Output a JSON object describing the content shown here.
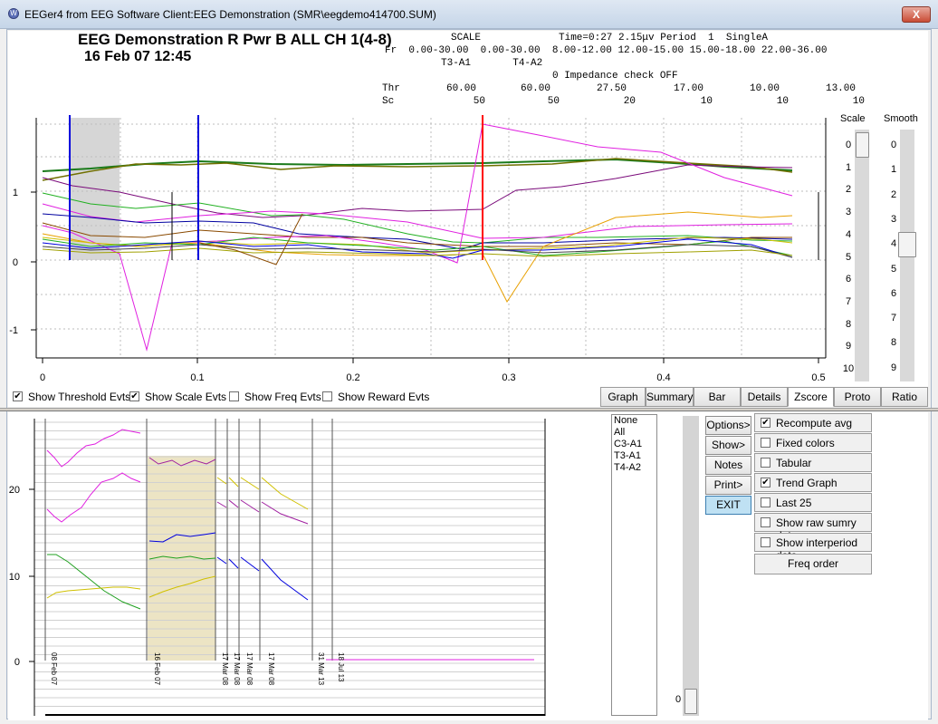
{
  "window": {
    "title": "EEGer4 from EEG Software   Client:EEG Demonstration  (SMR\\eegdemo414700.SUM)",
    "close_label": "X"
  },
  "header": {
    "title": "EEG Demonstration R Pwr B ALL CH 1(4-8)",
    "date": "16 Feb 07   12:45"
  },
  "info": {
    "scale_label": "SCALE",
    "time_line": "Time=0:27 2.15μv Period  1  SingleA",
    "fr_line": "Fr  0.00-30.00  0.00-30.00  8.00-12.00 12.00-15.00 15.00-18.00 22.00-36.00",
    "sites_line": "T3-A1       T4-A2",
    "impedance": "0 Impedance check OFF",
    "thr_label": "Thr",
    "sc_label": "Sc",
    "thr_values": [
      "60.00",
      "60.00",
      "27.50",
      "17.00",
      "10.00",
      "13.00"
    ],
    "sc_values": [
      "50",
      "50",
      "20",
      "10",
      "10",
      "10"
    ]
  },
  "scale_slider": {
    "label": "Scale",
    "ticks": [
      "0",
      "1",
      "2",
      "3",
      "4",
      "5",
      "6",
      "7",
      "8",
      "9",
      "10"
    ],
    "value": 0
  },
  "smooth_slider": {
    "label": "Smooth",
    "ticks": [
      "0",
      "1",
      "2",
      "3",
      "4",
      "5",
      "6",
      "7",
      "8",
      "9"
    ],
    "value": 4
  },
  "event_checks": [
    {
      "label": "Show Threshold Evts",
      "checked": true
    },
    {
      "label": "Show Scale Evts",
      "checked": true
    },
    {
      "label": "Show Freq Evts",
      "checked": false
    },
    {
      "label": "Show Reward Evts",
      "checked": false
    }
  ],
  "tabs": [
    "Graph",
    "Summary",
    "Bar",
    "Details",
    "Zscore",
    "Proto",
    "Ratio"
  ],
  "active_tab": "Zscore",
  "upper_chart": {
    "y_ticks": [
      "1",
      "0",
      "-1"
    ],
    "x_ticks": [
      "0",
      "0.1",
      "0.2",
      "0.3",
      "0.4",
      "0.5"
    ]
  },
  "lower_chart": {
    "y_ticks": [
      "20",
      "10",
      "0"
    ],
    "session_labels": [
      "08 Feb 07",
      "16 Feb 07",
      "17 Mar 08",
      "17 Mar 08",
      "17 Mar 08",
      "17 Mar 08",
      "31 Mar 13",
      "18 Jul 13"
    ]
  },
  "channel_list": [
    "None",
    "All",
    "C3-A1",
    "T3-A1",
    "T4-A2"
  ],
  "buttons": {
    "options": "Options>",
    "show": "Show>",
    "notes": "Notes",
    "print": "Print>",
    "exit": "EXIT"
  },
  "options": [
    {
      "label": "Recompute avg",
      "checked": true
    },
    {
      "label": "Fixed colors",
      "checked": false
    },
    {
      "label": "Tabular",
      "checked": false
    },
    {
      "label": "Trend Graph",
      "checked": true
    },
    {
      "label": "Last 25",
      "checked": false
    },
    {
      "label": "Show raw sumry data",
      "checked": false
    },
    {
      "label": "Show interperiod data",
      "checked": false
    }
  ],
  "freq_order_label": "Freq order",
  "vertical_slider": {
    "value": "0"
  },
  "colors": {
    "blue": "#0000dd",
    "red": "#ff0000",
    "magenta": "#e020e0",
    "green": "#20b020",
    "olive": "#707000",
    "yellow": "#e0c000",
    "orange": "#f0a000",
    "tan": "#ece4c4"
  }
}
